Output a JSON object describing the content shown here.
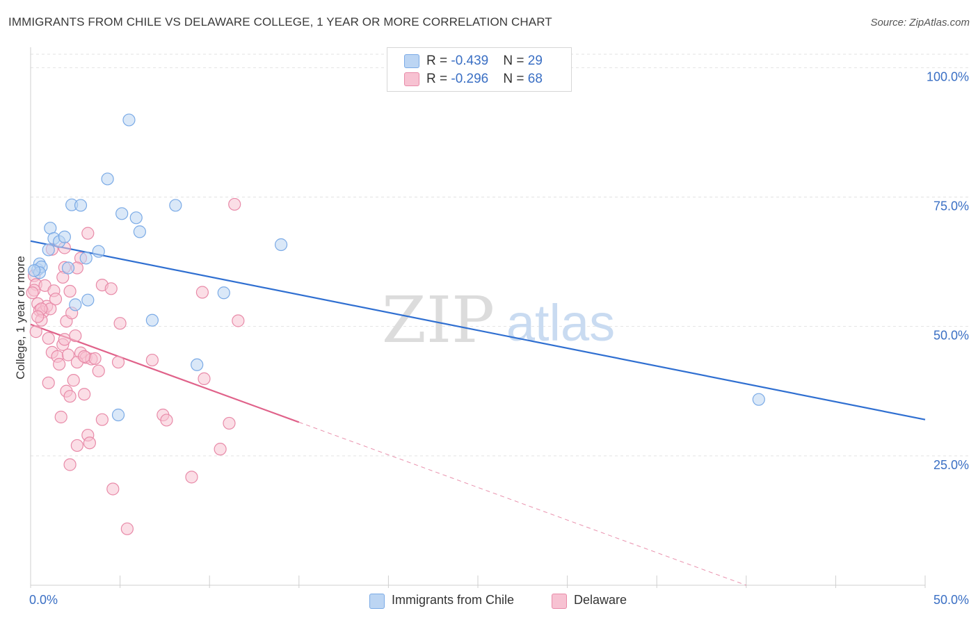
{
  "title": "IMMIGRANTS FROM CHILE VS DELAWARE COLLEGE, 1 YEAR OR MORE CORRELATION CHART",
  "source": "Source: ZipAtlas.com",
  "watermark": {
    "zip": "ZIP",
    "atlas": "atlas"
  },
  "legend": {
    "rows": [
      {
        "r_label": "R = ",
        "r_value": "-0.439",
        "n_label": "N = ",
        "n_value": "29"
      },
      {
        "r_label": "R = ",
        "r_value": "-0.296",
        "n_label": "N = ",
        "n_value": "68"
      }
    ]
  },
  "chart_data": {
    "type": "scatter",
    "title": "IMMIGRANTS FROM CHILE VS DELAWARE COLLEGE, 1 YEAR OR MORE CORRELATION CHART",
    "xlabel": "",
    "ylabel": "College, 1 year or more",
    "xlim": [
      0,
      50
    ],
    "ylim": [
      0,
      103
    ],
    "x_tick_labels": [
      {
        "value": 0,
        "label": "0.0%"
      },
      {
        "value": 50,
        "label": "50.0%"
      }
    ],
    "x_ticks": [
      0,
      5,
      10,
      15,
      20,
      25,
      30,
      35,
      40,
      45,
      50
    ],
    "y_tick_labels": [
      {
        "value": 100,
        "label": "100.0%"
      },
      {
        "value": 75,
        "label": "75.0%"
      },
      {
        "value": 50,
        "label": "50.0%"
      },
      {
        "value": 25,
        "label": "25.0%"
      }
    ],
    "grid": true,
    "legend_position": "top-center",
    "series": [
      {
        "name": "Immigrants from Chile",
        "color": "#7aaae6",
        "fill": "#bcd5f3",
        "line_color": "#2f6fd1",
        "R": -0.439,
        "N": 29,
        "points": [
          [
            0.4,
            61.0
          ],
          [
            0.5,
            62.1
          ],
          [
            0.6,
            61.5
          ],
          [
            0.5,
            60.4
          ],
          [
            1.0,
            64.8
          ],
          [
            1.1,
            69.0
          ],
          [
            1.3,
            67.0
          ],
          [
            1.6,
            66.4
          ],
          [
            1.9,
            67.3
          ],
          [
            2.1,
            61.3
          ],
          [
            2.3,
            73.5
          ],
          [
            2.8,
            73.4
          ],
          [
            3.1,
            63.2
          ],
          [
            3.2,
            55.1
          ],
          [
            2.5,
            54.2
          ],
          [
            3.8,
            64.5
          ],
          [
            4.3,
            78.5
          ],
          [
            5.1,
            71.8
          ],
          [
            5.5,
            89.9
          ],
          [
            5.9,
            71.0
          ],
          [
            6.1,
            68.3
          ],
          [
            6.8,
            51.2
          ],
          [
            8.1,
            73.4
          ],
          [
            9.3,
            42.6
          ],
          [
            10.8,
            56.5
          ],
          [
            14.0,
            65.8
          ],
          [
            40.7,
            35.9
          ],
          [
            4.9,
            32.9
          ],
          [
            0.2,
            60.8
          ]
        ],
        "trend": {
          "x_start": 0,
          "y_start": 66.5,
          "x_end": 50,
          "y_end": 32.0
        }
      },
      {
        "name": "Delaware",
        "color": "#e88aa8",
        "fill": "#f7c2d2",
        "line_color": "#e0628a",
        "R": -0.296,
        "N": 68,
        "points": [
          [
            0.2,
            59.8
          ],
          [
            0.3,
            58.1
          ],
          [
            0.2,
            57.0
          ],
          [
            0.4,
            54.4
          ],
          [
            0.5,
            53.1
          ],
          [
            0.3,
            49.0
          ],
          [
            0.7,
            52.8
          ],
          [
            0.9,
            53.9
          ],
          [
            0.6,
            51.2
          ],
          [
            1.1,
            53.4
          ],
          [
            0.8,
            57.9
          ],
          [
            1.3,
            56.9
          ],
          [
            1.4,
            55.3
          ],
          [
            1.0,
            47.7
          ],
          [
            1.2,
            45.0
          ],
          [
            1.5,
            44.2
          ],
          [
            1.6,
            42.7
          ],
          [
            1.8,
            46.5
          ],
          [
            1.9,
            47.5
          ],
          [
            2.0,
            51.0
          ],
          [
            2.1,
            44.5
          ],
          [
            2.2,
            56.8
          ],
          [
            2.3,
            52.6
          ],
          [
            2.5,
            48.2
          ],
          [
            2.4,
            39.6
          ],
          [
            2.0,
            37.5
          ],
          [
            2.2,
            36.5
          ],
          [
            1.0,
            39.1
          ],
          [
            3.0,
            36.9
          ],
          [
            1.7,
            32.5
          ],
          [
            2.8,
            44.9
          ],
          [
            3.1,
            44.0
          ],
          [
            3.4,
            43.7
          ],
          [
            3.6,
            43.8
          ],
          [
            3.8,
            41.4
          ],
          [
            4.0,
            32.0
          ],
          [
            3.2,
            29.0
          ],
          [
            3.3,
            27.5
          ],
          [
            2.6,
            27.0
          ],
          [
            2.2,
            23.3
          ],
          [
            1.9,
            65.2
          ],
          [
            1.2,
            64.9
          ],
          [
            2.8,
            63.2
          ],
          [
            3.2,
            68.0
          ],
          [
            2.6,
            61.3
          ],
          [
            1.9,
            61.4
          ],
          [
            1.8,
            59.5
          ],
          [
            4.0,
            58.0
          ],
          [
            4.5,
            57.3
          ],
          [
            4.9,
            43.1
          ],
          [
            5.0,
            50.6
          ],
          [
            4.6,
            18.6
          ],
          [
            5.4,
            10.9
          ],
          [
            6.8,
            43.5
          ],
          [
            7.4,
            32.9
          ],
          [
            7.6,
            31.9
          ],
          [
            9.0,
            20.9
          ],
          [
            9.6,
            56.6
          ],
          [
            9.7,
            39.9
          ],
          [
            10.6,
            26.3
          ],
          [
            11.1,
            31.3
          ],
          [
            11.4,
            73.6
          ],
          [
            11.6,
            51.1
          ],
          [
            0.1,
            56.5
          ],
          [
            0.6,
            53.4
          ],
          [
            0.4,
            51.9
          ],
          [
            2.6,
            43.1
          ],
          [
            3.0,
            44.2
          ]
        ],
        "trend": {
          "x_start": 0,
          "y_start": 50.4,
          "x_end": 15,
          "y_end": 31.5
        },
        "trend_extension": {
          "x_start": 15,
          "y_start": 31.5,
          "x_end": 40,
          "y_end": 0
        }
      }
    ]
  }
}
